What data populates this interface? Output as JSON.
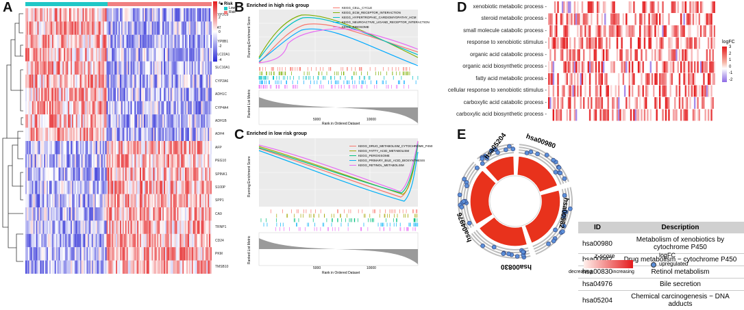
{
  "panels": {
    "A": "A",
    "B": "B",
    "C": "C",
    "D": "D",
    "E": "E"
  },
  "heatmap_A": {
    "legend_title": "Risk",
    "group_legend": {
      "title": "Risk",
      "items": [
        {
          "label": "Low",
          "color": "#20c7c7"
        },
        {
          "label": "Risk",
          "color": "#f08080"
        }
      ]
    },
    "scale_ticks": [
      "4",
      "2",
      "0",
      "-2",
      "-4"
    ],
    "genes": [
      "CYP2C9",
      "TAT",
      "CYP8B1",
      "SLC22A1",
      "SLC10A1",
      "CYP2A6",
      "ADH1C",
      "CYP4A4",
      "ADH1B",
      "ADH4",
      "AFP",
      "PEG10",
      "SPINK1",
      "S100P",
      "SPP1",
      "CA9",
      "TRNP1",
      "CD24",
      "PKM",
      "TMSB10"
    ],
    "colors": {
      "low": "#20c7c7",
      "high": "#f08080",
      "up": "#e41a1c",
      "down": "#2b2bd6"
    }
  },
  "gsea_B": {
    "title": "Enriched in high risk group",
    "ylabel_top": "Running Enrichment Score",
    "ylabel_bottom": "Ranked List Metric",
    "xlabel": "Rank in Ordered Dataset",
    "xticks": [
      "5000",
      "10000"
    ],
    "yticks": [
      "0.6",
      "0.4",
      "0.2",
      "0.0"
    ],
    "bottom_ticks": [
      "10",
      "5",
      "0",
      "-5"
    ],
    "legend": [
      {
        "label": "KEGG_CELL_CYCLE",
        "color": "#f8766d"
      },
      {
        "label": "KEGG_ECM_RECEPTOR_INTERACTION",
        "color": "#7cae00"
      },
      {
        "label": "KEGG_HYPERTROPHIC_CARDIOMYOPATHY_HCM",
        "color": "#00bfc4"
      },
      {
        "label": "KEGG_NEUROACTIVE_LIGAND_RECEPTOR_INTERACTION",
        "color": "#00a9ff"
      },
      {
        "label": "KEGG_RIBOSOME",
        "color": "#e76bf3"
      }
    ]
  },
  "gsea_C": {
    "title": "Enriched in low risk group",
    "ylabel_top": "Running Enrichment Score",
    "ylabel_bottom": "Ranked List Metric",
    "xlabel": "Rank in Ordered Dataset",
    "xticks": [
      "5000",
      "10000"
    ],
    "yticks": [
      "0.00",
      "-0.25",
      "-0.50",
      "-0.75"
    ],
    "bottom_ticks": [
      "10",
      "5",
      "0",
      "-5"
    ],
    "legend": [
      {
        "label": "KEGG_DRUG_METABOLISM_CYTOCHROME_P450",
        "color": "#f8766d"
      },
      {
        "label": "KEGG_FATTY_ACID_METABOLISM",
        "color": "#a3a500"
      },
      {
        "label": "KEGG_PEROXISOME",
        "color": "#00bf7d"
      },
      {
        "label": "KEGG_PRIMARY_BILE_ACID_BIOSYNTHESIS",
        "color": "#00b0f6"
      },
      {
        "label": "KEGG_RETINOL_METABOLISM",
        "color": "#e76bf3"
      }
    ]
  },
  "heatmap_D": {
    "terms": [
      "xenobiotic metabolic process",
      "steroid metabolic process",
      "small molecule catabolic process",
      "response to xenobiotic stimulus",
      "organic acid catabolic process",
      "organic acid biosynthetic process",
      "fatty acid metabolic process",
      "cellular response to xenobiotic stimulus",
      "carboxylic acid catabolic process",
      "carboxylic acid biosynthetic process"
    ],
    "legend_title": "logFC",
    "legend_ticks": [
      "3",
      "2",
      "1",
      "0",
      "-1",
      "-2"
    ]
  },
  "chord_E": {
    "ids_outer": [
      "hsa00980",
      "hsa00982",
      "hsa00830",
      "hsa04976",
      "hsa05204"
    ],
    "table_headers": [
      "ID",
      "Description"
    ],
    "table_rows": [
      {
        "id": "hsa00980",
        "desc": "Metabolism of xenobiotics by cytochrome P450"
      },
      {
        "id": "hsa00982",
        "desc": "Drug metabolism − cytochrome P450"
      },
      {
        "id": "hsa00830",
        "desc": "Retinol metabolism"
      },
      {
        "id": "hsa04976",
        "desc": "Bile secretion"
      },
      {
        "id": "hsa05204",
        "desc": "Chemical carcinogenesis − DNA adducts"
      }
    ],
    "zscore_title": "z-score",
    "zscore_low": "decreasing",
    "zscore_high": "increasing",
    "logfc_title": "logFC",
    "logfc_item": "upregulated"
  }
}
